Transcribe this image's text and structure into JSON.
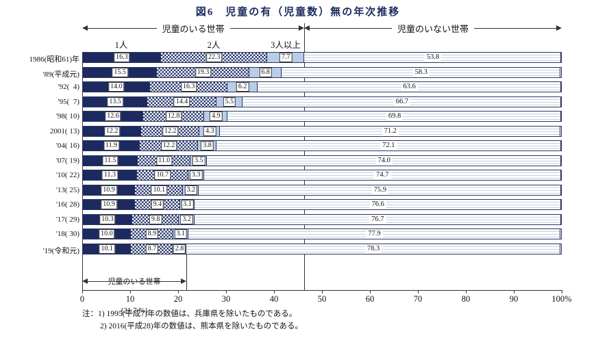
{
  "title": "図6　児童の有（児童数）無の年次推移",
  "header": {
    "with_children": "児童のいる世帯",
    "without_children": "児童のいない世帯",
    "col1": "1人",
    "col2": "2人",
    "col3": "3人以上"
  },
  "bottom_annotation": {
    "line1": "児童のいる世帯",
    "line2": "(21.7 %)"
  },
  "axis": {
    "ticks": [
      "0",
      "10",
      "20",
      "30",
      "40",
      "50",
      "60",
      "70",
      "80",
      "90",
      "100%"
    ]
  },
  "notes": [
    "注：1) 1995(平成7)年の数値は、兵庫県を除いたものである。",
    "2) 2016(平成28)年の数値は、熊本県を除いたものである。"
  ],
  "colors": {
    "navy": "#1c2a60",
    "checker": "#2a3a6e",
    "light_blue": "#b9cde6",
    "stripe": "#c2cede",
    "line": "#333333",
    "title_text": "#1a2a5c"
  },
  "chart_data": {
    "type": "bar",
    "orientation": "horizontal",
    "stacked": true,
    "title": "図6　児童の有（児童数）無の年次推移",
    "unit": "%",
    "xlim": [
      0,
      100
    ],
    "grid": false,
    "categories": [
      "1986(昭和61)年",
      "'89(平成元)",
      "'92(  4)",
      "'95(  7)",
      "'98( 10)",
      "2001( 13)",
      "'04( 16)",
      "'07( 19)",
      "'10( 22)",
      "'13( 25)",
      "'16( 28)",
      "'17( 29)",
      "'18( 30)",
      "'19(令和元)"
    ],
    "series": [
      {
        "name": "1人",
        "values": [
          16.3,
          15.5,
          14.0,
          13.5,
          12.6,
          12.2,
          11.9,
          11.5,
          11.3,
          10.9,
          10.9,
          10.3,
          10.0,
          10.1
        ]
      },
      {
        "name": "2人",
        "values": [
          22.3,
          19.3,
          16.3,
          14.4,
          12.8,
          12.2,
          12.2,
          11.0,
          10.7,
          10.1,
          9.4,
          9.8,
          8.9,
          8.7
        ]
      },
      {
        "name": "3人以上",
        "values": [
          7.7,
          6.8,
          6.2,
          5.5,
          4.9,
          4.3,
          3.8,
          3.5,
          3.3,
          3.2,
          3.1,
          3.2,
          3.1,
          2.8
        ]
      },
      {
        "name": "児童のいない世帯",
        "values": [
          53.8,
          58.3,
          63.6,
          66.7,
          69.8,
          71.2,
          72.1,
          74.0,
          74.7,
          75.9,
          76.6,
          76.7,
          77.9,
          78.3
        ]
      }
    ],
    "with_children_total_2019": "21.7"
  }
}
